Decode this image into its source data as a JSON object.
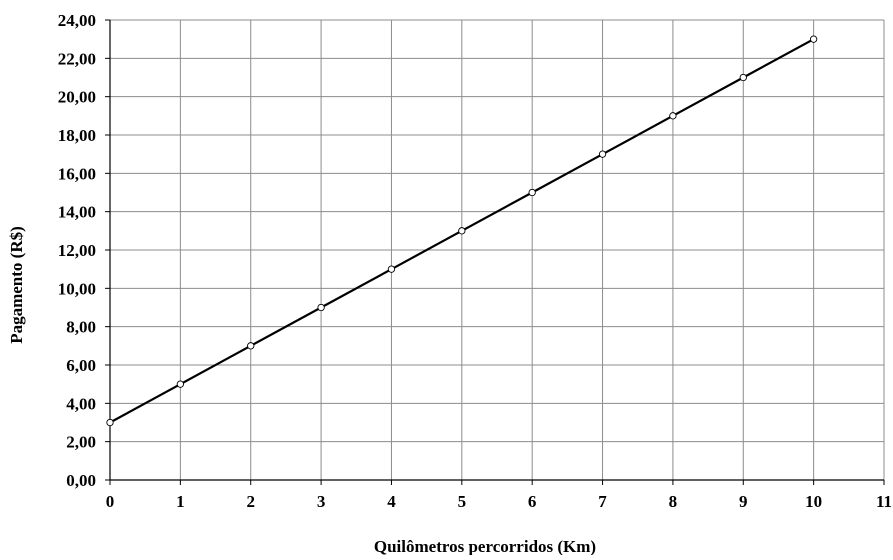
{
  "chart_data": {
    "type": "line",
    "title": "",
    "xlabel": "Quilômetros percorridos (Km)",
    "ylabel": "Pagamento (R$)",
    "xlim": [
      0,
      11
    ],
    "ylim": [
      0,
      24
    ],
    "x_ticks": [
      0,
      1,
      2,
      3,
      4,
      5,
      6,
      7,
      8,
      9,
      10,
      11
    ],
    "x_tick_labels": [
      "0",
      "1",
      "2",
      "3",
      "4",
      "5",
      "6",
      "7",
      "8",
      "9",
      "10",
      "11"
    ],
    "y_ticks": [
      0,
      2,
      4,
      6,
      8,
      10,
      12,
      14,
      16,
      18,
      20,
      22,
      24
    ],
    "y_tick_labels": [
      "0,00",
      "2,00",
      "4,00",
      "6,00",
      "8,00",
      "10,00",
      "12,00",
      "14,00",
      "16,00",
      "18,00",
      "20,00",
      "22,00",
      "24,00"
    ],
    "grid": true,
    "legend": "none",
    "series": [
      {
        "x": [
          0,
          1,
          2,
          3,
          4,
          5,
          6,
          7,
          8,
          9,
          10
        ],
        "y": [
          3,
          5,
          7,
          9,
          11,
          13,
          15,
          17,
          19,
          21,
          23
        ],
        "line_color": "#000000",
        "marker": "circle-open"
      }
    ],
    "colors": {
      "grid": "#8c8c8c",
      "axis": "#000000",
      "background": "#ffffff",
      "marker_fill": "#ffffff"
    }
  }
}
